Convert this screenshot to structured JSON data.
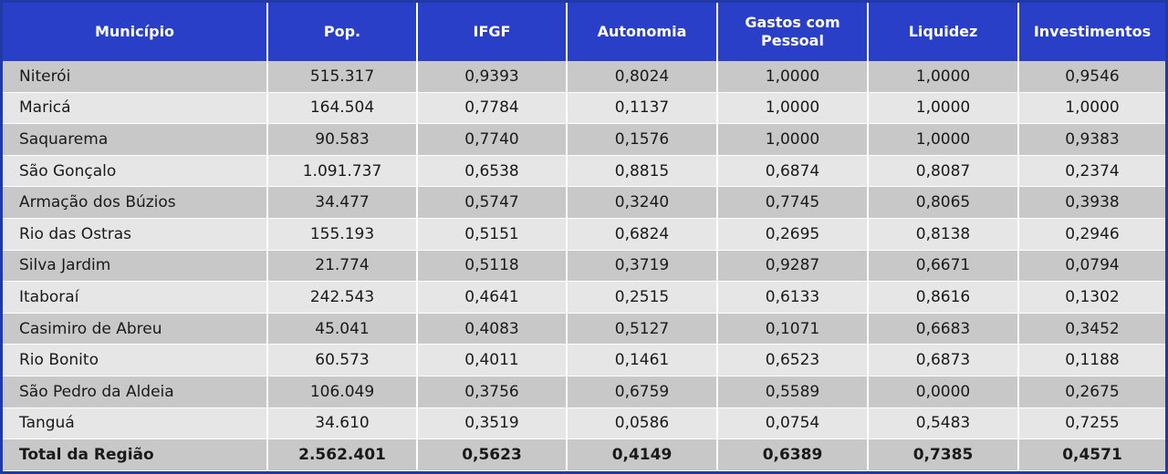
{
  "table": {
    "headers": {
      "municipio": "Município",
      "pop": "Pop.",
      "ifgf": "IFGF",
      "autonomia": "Autonomia",
      "gastos_line1": "Gastos com",
      "gastos_line2": "Pessoal",
      "liquidez": "Liquidez",
      "investimentos": "Investimentos"
    },
    "rows": [
      {
        "municipio": "Niterói",
        "pop": "515.317",
        "ifgf": "0,9393",
        "autonomia": "0,8024",
        "gastos": "1,0000",
        "liquidez": "1,0000",
        "investimentos": "0,9546"
      },
      {
        "municipio": "Maricá",
        "pop": "164.504",
        "ifgf": "0,7784",
        "autonomia": "0,1137",
        "gastos": "1,0000",
        "liquidez": "1,0000",
        "investimentos": "1,0000"
      },
      {
        "municipio": "Saquarema",
        "pop": "90.583",
        "ifgf": "0,7740",
        "autonomia": "0,1576",
        "gastos": "1,0000",
        "liquidez": "1,0000",
        "investimentos": "0,9383"
      },
      {
        "municipio": "São Gonçalo",
        "pop": "1.091.737",
        "ifgf": "0,6538",
        "autonomia": "0,8815",
        "gastos": "0,6874",
        "liquidez": "0,8087",
        "investimentos": "0,2374"
      },
      {
        "municipio": "Armação dos Búzios",
        "pop": "34.477",
        "ifgf": "0,5747",
        "autonomia": "0,3240",
        "gastos": "0,7745",
        "liquidez": "0,8065",
        "investimentos": "0,3938"
      },
      {
        "municipio": "Rio das Ostras",
        "pop": "155.193",
        "ifgf": "0,5151",
        "autonomia": "0,6824",
        "gastos": "0,2695",
        "liquidez": "0,8138",
        "investimentos": "0,2946"
      },
      {
        "municipio": "Silva Jardim",
        "pop": "21.774",
        "ifgf": "0,5118",
        "autonomia": "0,3719",
        "gastos": "0,9287",
        "liquidez": "0,6671",
        "investimentos": "0,0794"
      },
      {
        "municipio": "Itaboraí",
        "pop": "242.543",
        "ifgf": "0,4641",
        "autonomia": "0,2515",
        "gastos": "0,6133",
        "liquidez": "0,8616",
        "investimentos": "0,1302"
      },
      {
        "municipio": "Casimiro de Abreu",
        "pop": "45.041",
        "ifgf": "0,4083",
        "autonomia": "0,5127",
        "gastos": "0,1071",
        "liquidez": "0,6683",
        "investimentos": "0,3452"
      },
      {
        "municipio": "Rio Bonito",
        "pop": "60.573",
        "ifgf": "0,4011",
        "autonomia": "0,1461",
        "gastos": "0,6523",
        "liquidez": "0,6873",
        "investimentos": "0,1188"
      },
      {
        "municipio": "São Pedro da Aldeia",
        "pop": "106.049",
        "ifgf": "0,3756",
        "autonomia": "0,6759",
        "gastos": "0,5589",
        "liquidez": "0,0000",
        "investimentos": "0,2675"
      },
      {
        "municipio": "Tanguá",
        "pop": "34.610",
        "ifgf": "0,3519",
        "autonomia": "0,0586",
        "gastos": "0,0754",
        "liquidez": "0,5483",
        "investimentos": "0,7255"
      }
    ],
    "total": {
      "municipio": "Total da Região",
      "pop": "2.562.401",
      "ifgf": "0,5623",
      "autonomia": "0,4149",
      "gastos": "0,6389",
      "liquidez": "0,7385",
      "investimentos": "0,4571"
    }
  },
  "colors": {
    "header_bg": "#2a3fc8",
    "row_dark": "#c8c8c8",
    "row_light": "#e6e6e6",
    "frame": "#1f3aa6"
  }
}
